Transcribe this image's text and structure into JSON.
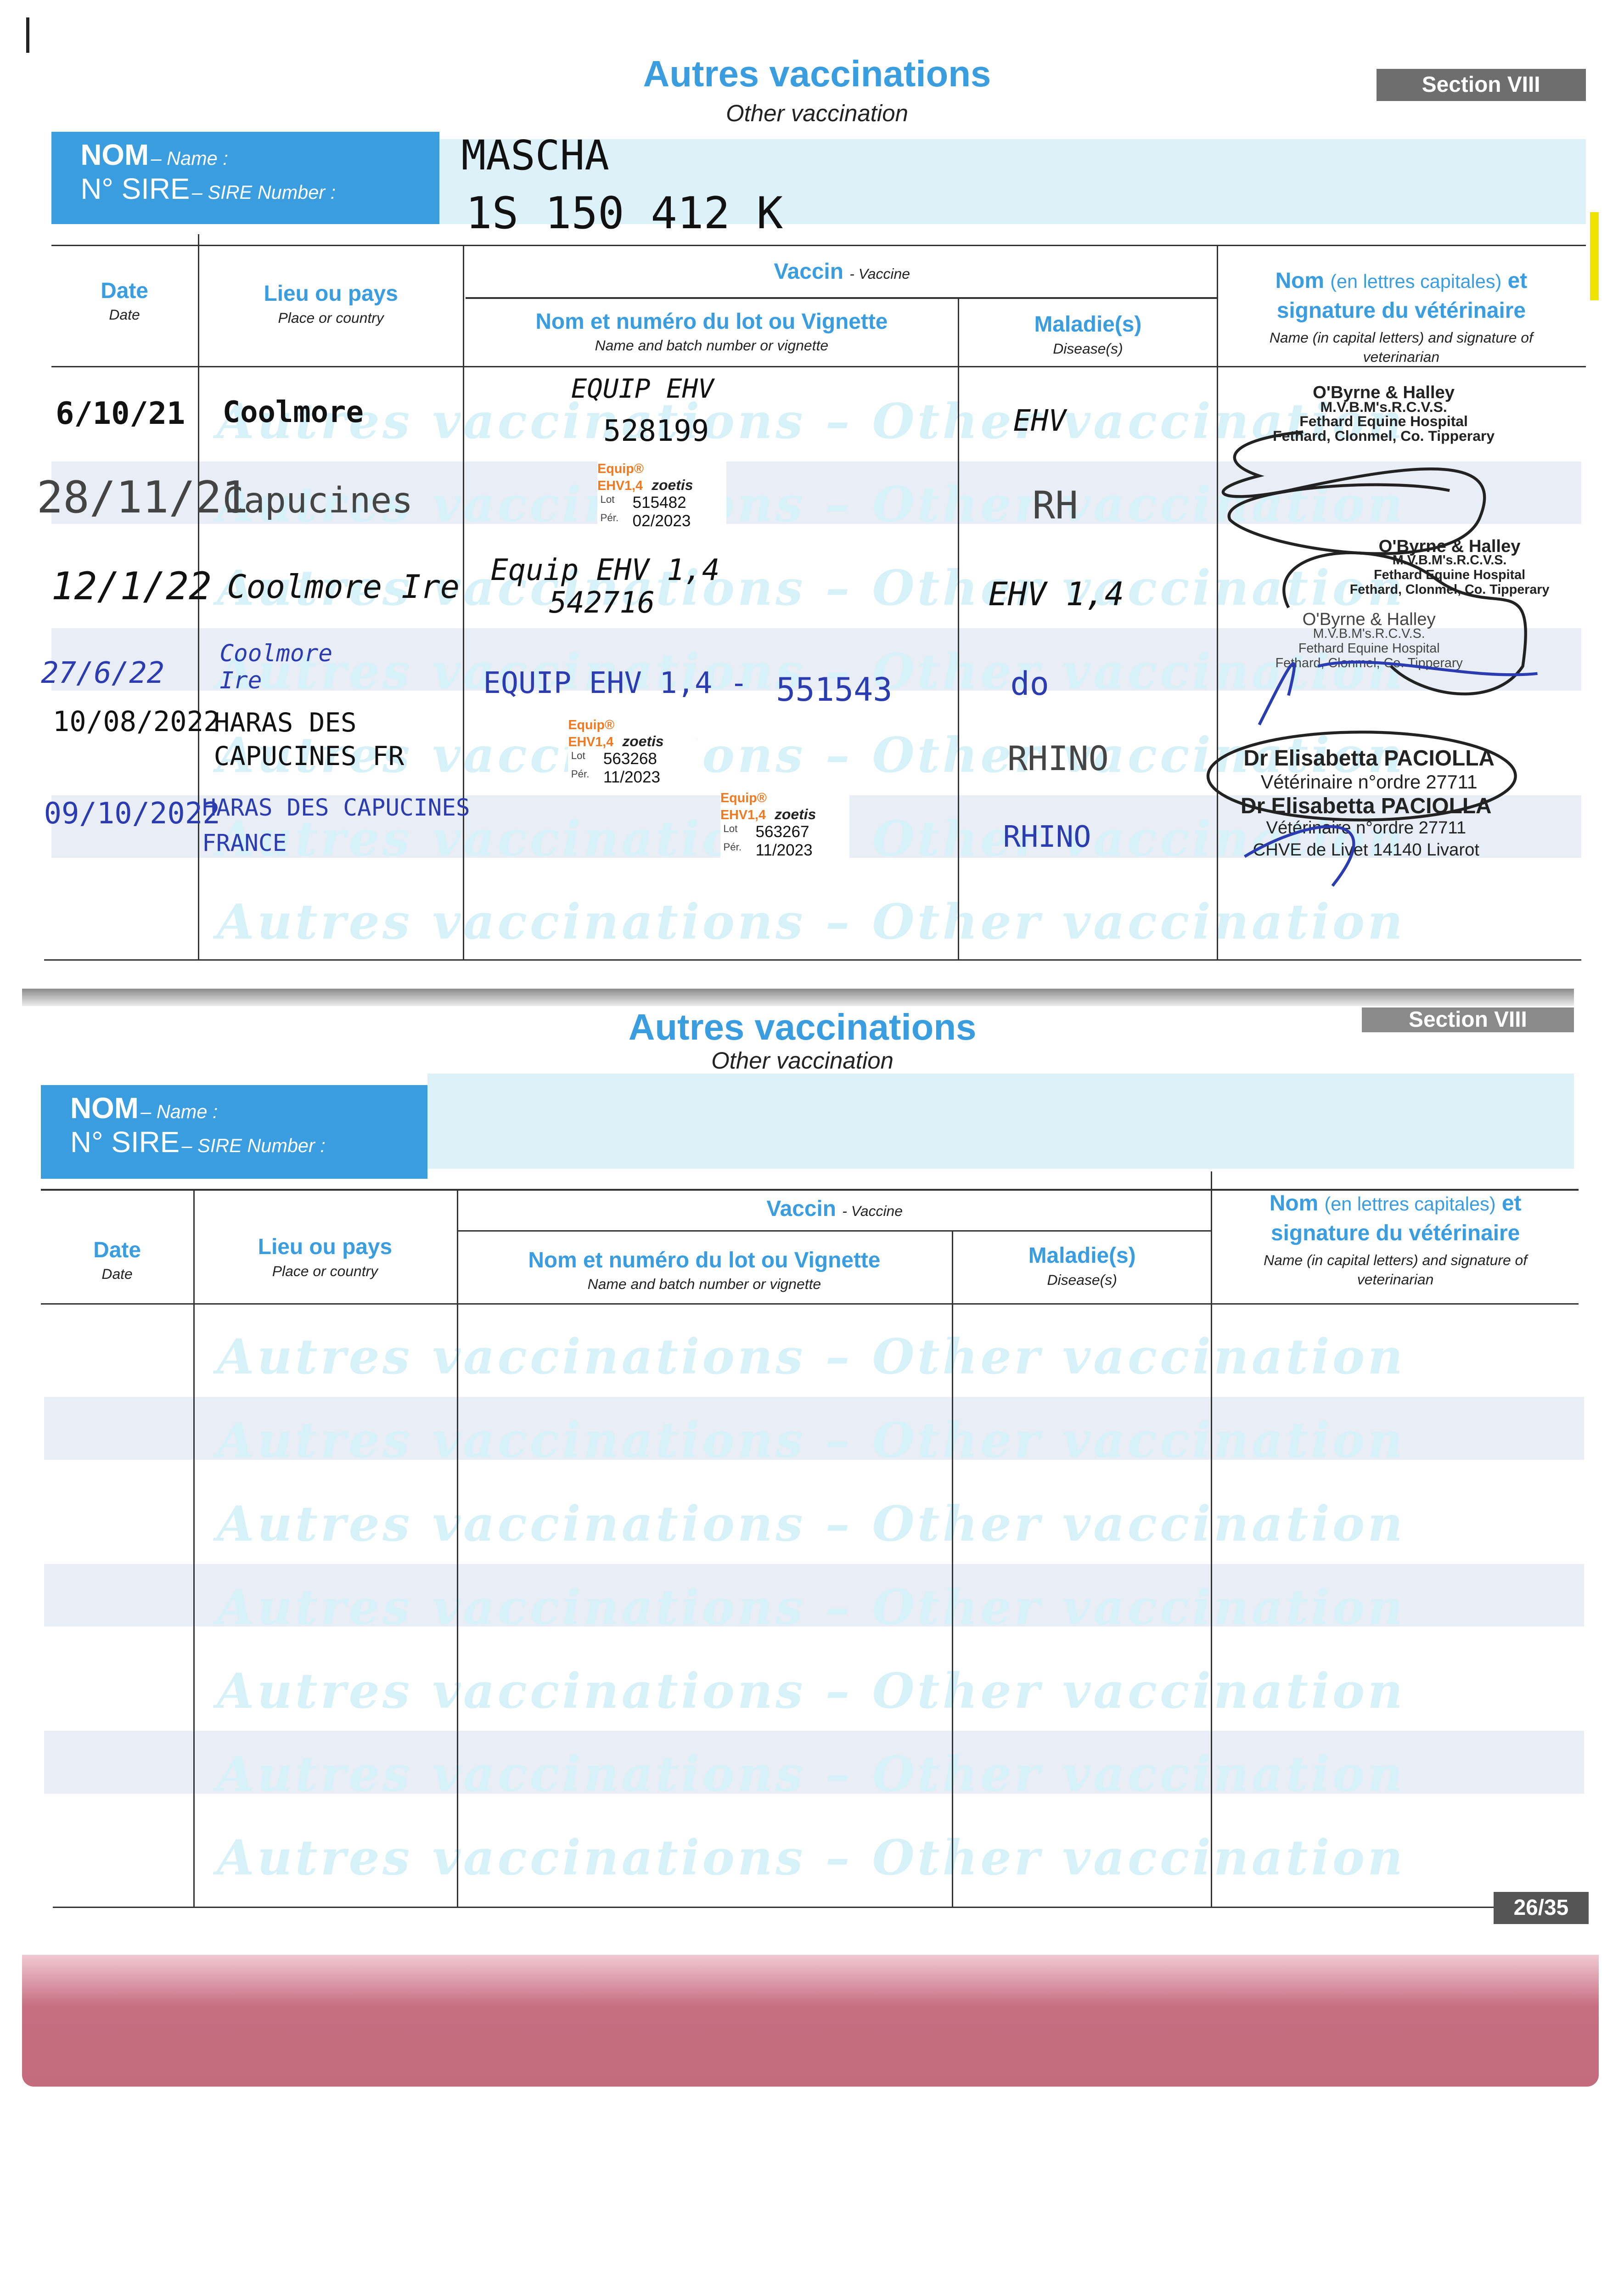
{
  "top_page": {
    "title": "Autres vaccinations",
    "subtitle": "Other vaccination",
    "section": "Section VIII",
    "name_label_fr": "NOM",
    "name_label_en": "– Name :",
    "sire_label_fr": "N° SIRE",
    "sire_label_en": "– SIRE Number :",
    "name_value": "MASCHA",
    "sire_value": "1S 150 412 K",
    "headers": {
      "date_fr": "Date",
      "date_en": "Date",
      "place_fr": "Lieu ou pays",
      "place_en": "Place or country",
      "vaccine_fr": "Vaccin",
      "vaccine_en": "- Vaccine",
      "batch_fr": "Nom et numéro du lot ou Vignette",
      "batch_en": "Name and batch number or vignette",
      "disease_fr": "Maladie(s)",
      "disease_en": "Disease(s)",
      "vet_fr_1": "Nom",
      "vet_fr_2": "(en lettres capitales)",
      "vet_fr_3": "et",
      "vet_fr_4": "signature du vétérinaire",
      "vet_en": "Name (in capital letters) and signature of veterinarian"
    },
    "watermark": "Autres vaccinations – Other vaccination",
    "rows": [
      {
        "date": "6/10/21",
        "place": "Coolmore",
        "vaccine": "EQUIP EHV",
        "batch": "528199",
        "disease": "EHV"
      },
      {
        "date": "28/11/21",
        "place": "Capucines",
        "vaccine": "",
        "batch": "",
        "disease": "RH",
        "sticker": {
          "brand": "Equip® EHV1,4",
          "maker": "zoetis",
          "lot_label": "Lot",
          "lot": "515482",
          "exp_label": "Pér.",
          "exp": "02/2023"
        }
      },
      {
        "date": "12/1/22",
        "place": "Coolmore Ire",
        "vaccine": "Equip EHV 1,4",
        "batch": "542716",
        "disease": "EHV 1,4"
      },
      {
        "date": "27/6/22",
        "place": "Coolmore Ire",
        "vaccine": "EQUIP EHV 1,4 -",
        "batch": "551543",
        "disease": "do"
      },
      {
        "date": "10/08/2022",
        "place": "HARAS DES CAPUCINES FR",
        "vaccine": "",
        "batch": "",
        "disease": "RHINO",
        "sticker": {
          "brand": "Equip® EHV1,4",
          "maker": "zoetis",
          "lot_label": "Lot",
          "lot": "563268",
          "exp_label": "Pér.",
          "exp": "11/2023"
        }
      },
      {
        "date": "09/10/2022",
        "place": "HARAS DES CAPUCINES FRANCE",
        "vaccine": "",
        "batch": "",
        "disease": "RHINO",
        "sticker": {
          "brand": "Equip® EHV1,4",
          "maker": "zoetis",
          "lot_label": "Lot",
          "lot": "563267",
          "exp_label": "Pér.",
          "exp": "11/2023"
        }
      }
    ],
    "stamps": [
      {
        "l1": "O'Byrne & Halley",
        "l2": "M.V.B.M's.R.C.V.S.",
        "l3": "Fethard Equine Hospital",
        "l4": "Fethard, Clonmel, Co. Tipperary"
      },
      {
        "l1": "O'Byrne & Halley",
        "l2": "M.V.B.M's.R.C.V.S.",
        "l3": "Fethard Equine Hospital",
        "l4": "Fethard, Clonmel, Co. Tipperary"
      },
      {
        "l1": "O'Byrne & Halley",
        "l2": "M.V.B.M's.R.C.V.S.",
        "l3": "Fethard Equine Hospital",
        "l4": "Fethard, Clonmel, Co. Tipperary"
      },
      {
        "l1": "Dr Elisabetta PACIOLLA",
        "l2": "Vétérinaire n°ordre 27711",
        "l3": "CHVE de Livet 14140 Livarot",
        "l4": ""
      },
      {
        "l1": "Dr Elisabetta PACIOLLA",
        "l2": "Vétérinaire n°ordre 27711",
        "l3": "CHVE de Livet 14140 Livarot",
        "l4": ""
      }
    ]
  },
  "bottom_page": {
    "title": "Autres vaccinations",
    "subtitle": "Other vaccination",
    "section": "Section VIII",
    "page_number": "26/35"
  }
}
